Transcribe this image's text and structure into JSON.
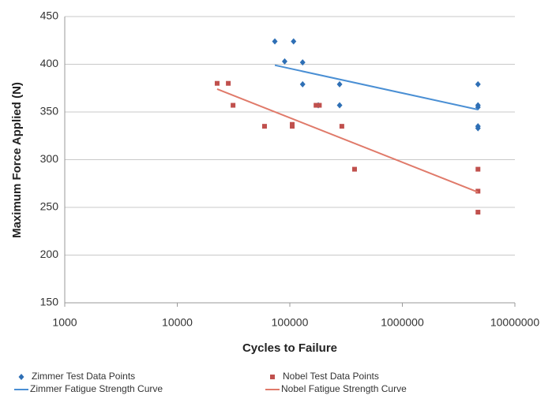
{
  "chart_data": {
    "type": "scatter",
    "xlabel": "Cycles to Failure",
    "ylabel": "Maximum Force Applied (N)",
    "xscale": "log",
    "xlim": [
      1000,
      10000000
    ],
    "xticks": [
      1000,
      10000,
      100000,
      1000000,
      10000000
    ],
    "ylim": [
      150,
      450
    ],
    "yticks": [
      150,
      200,
      250,
      300,
      350,
      400,
      450
    ],
    "grid": true,
    "legend": "bottom",
    "series": [
      {
        "name": "Zimmer Test Data Points",
        "color": "#2e6fb5",
        "marker": "diamond",
        "x": [
          73600,
          108000,
          90000,
          130000,
          130000,
          277000,
          277000,
          179000,
          4700000,
          4700000,
          4700000,
          4700000,
          4700000
        ],
        "values": [
          424,
          424,
          403,
          402,
          379,
          379,
          357,
          357,
          379,
          357,
          355,
          335,
          333
        ]
      },
      {
        "name": "Nobel Test Data Points",
        "color": "#c0504d",
        "marker": "square",
        "x": [
          22600,
          28400,
          31300,
          59600,
          105000,
          105000,
          171000,
          183000,
          290000,
          376000,
          4700000,
          4700000,
          4700000
        ],
        "values": [
          380,
          380,
          357,
          335,
          335,
          337,
          357,
          357,
          335,
          290,
          290,
          267,
          245
        ]
      },
      {
        "name": "Zimmer Fatigue Strength Curve",
        "color": "#4a8fd4",
        "marker": "line",
        "x": [
          73600,
          4700000
        ],
        "values": [
          399,
          352.5
        ]
      },
      {
        "name": "Nobel Fatigue Strength Curve",
        "color": "#e07a6a",
        "marker": "line",
        "x": [
          22600,
          4700000
        ],
        "values": [
          374,
          266
        ]
      }
    ]
  }
}
